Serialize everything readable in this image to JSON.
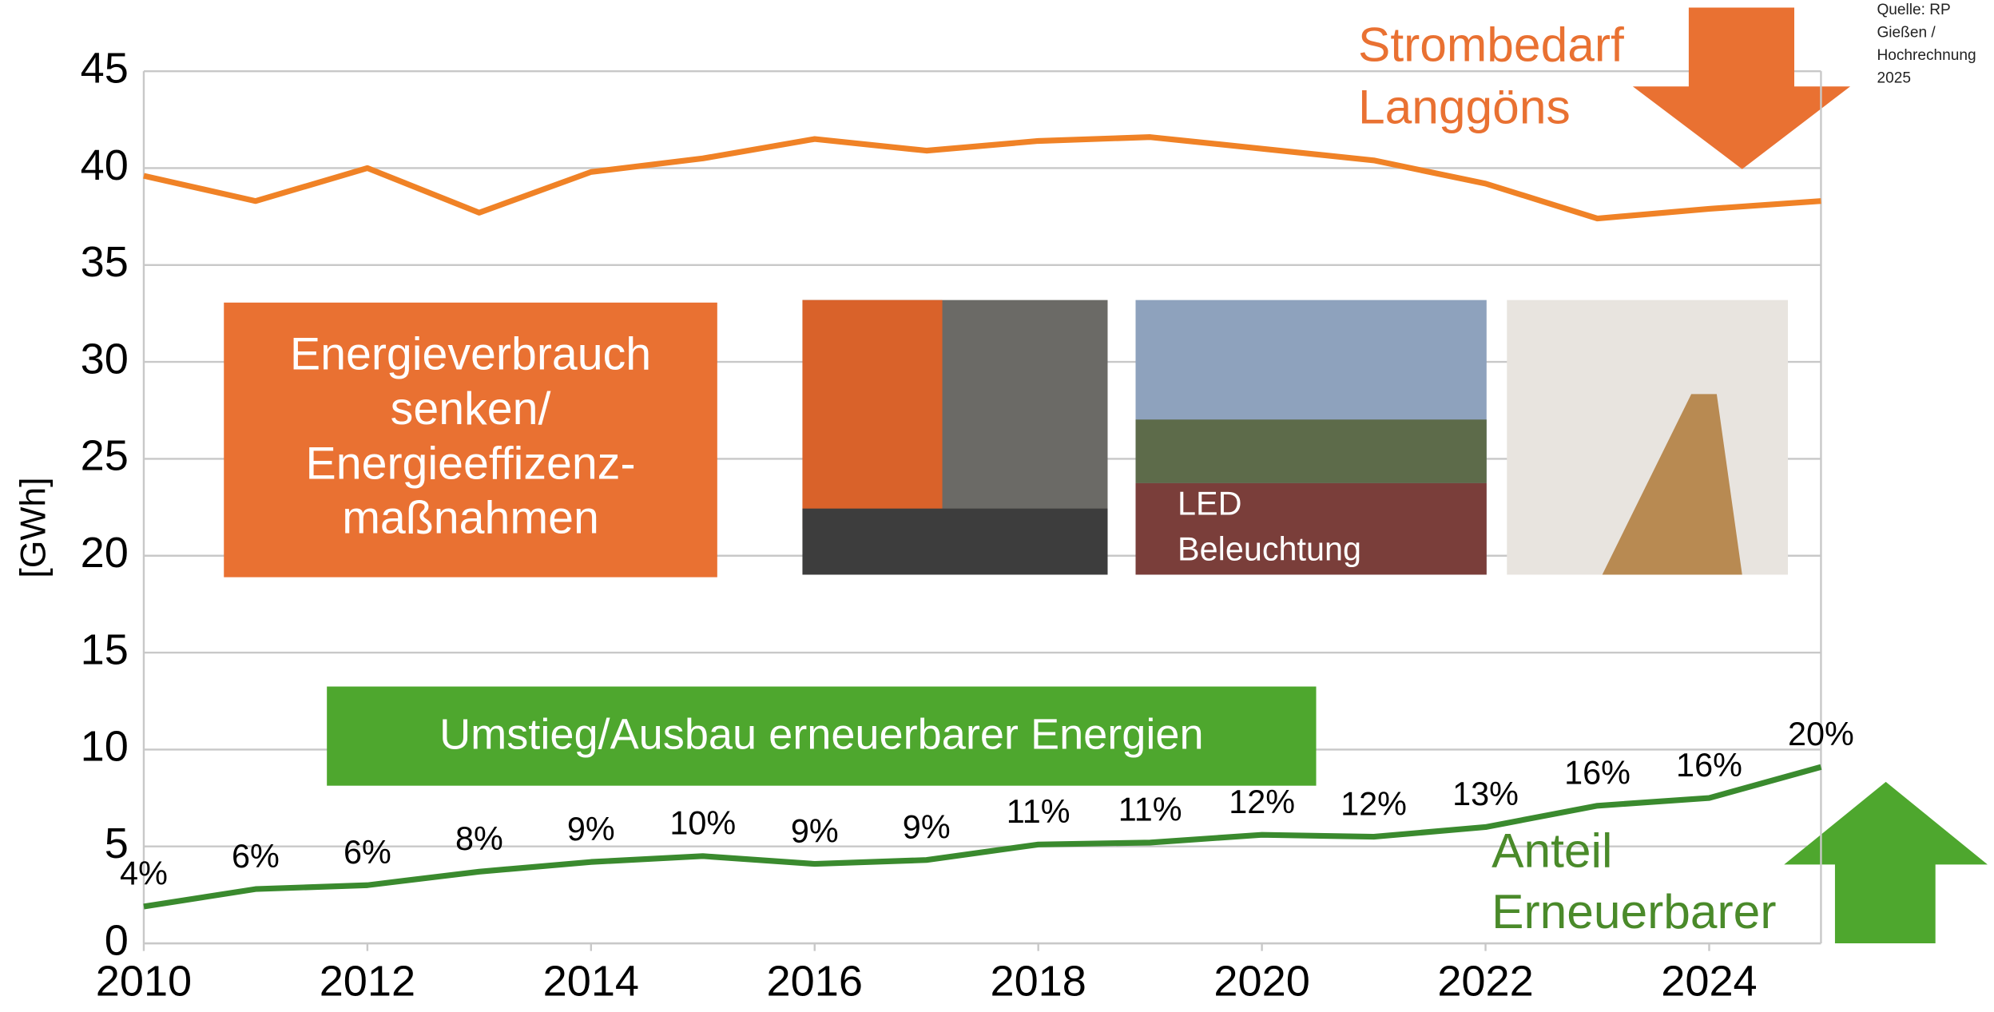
{
  "chart_data": {
    "type": "line",
    "y_label": "[GWh]",
    "x": [
      2010,
      2011,
      2012,
      2013,
      2014,
      2015,
      2016,
      2017,
      2018,
      2019,
      2020,
      2021,
      2022,
      2023,
      2024,
      2025
    ],
    "xlim": [
      2010,
      2025
    ],
    "xticks": [
      2010,
      2012,
      2014,
      2016,
      2018,
      2020,
      2022,
      2024
    ],
    "ylim": [
      0,
      45
    ],
    "yticks": [
      0,
      5,
      10,
      15,
      20,
      25,
      30,
      35,
      40,
      45
    ],
    "grid": true,
    "series": [
      {
        "color": "#f08226",
        "values": [
          39.6,
          38.3,
          40.0,
          37.7,
          39.8,
          40.5,
          41.5,
          40.9,
          41.4,
          41.6,
          41.0,
          40.4,
          39.2,
          37.4,
          37.9,
          38.3
        ]
      },
      {
        "color": "#3a8a2e",
        "values": [
          1.9,
          2.8,
          3.0,
          3.7,
          4.2,
          4.5,
          4.1,
          4.3,
          5.1,
          5.2,
          5.6,
          5.5,
          6.0,
          7.1,
          7.5,
          9.1
        ],
        "value_labels": [
          "4%",
          "6%",
          "6%",
          "8%",
          "9%",
          "10%",
          "9%",
          "9%",
          "11%",
          "11%",
          "12%",
          "12%",
          "13%",
          "16%",
          "16%",
          "20%"
        ]
      }
    ],
    "annotations": {
      "demand": [
        "Strombedarf",
        "Langgöns"
      ],
      "renewable": [
        "Anteil",
        "Erneuerbarer"
      ],
      "source": [
        "Quelle: RP",
        "Gießen /",
        "Hochrechnung",
        "2025"
      ]
    }
  },
  "panels": {
    "efficiency": [
      "Energieverbrauch",
      "senken/",
      "Energieeffizenz-",
      "maßnahmen"
    ],
    "renewables": "Umstieg/Ausbau erneuerbarer Energien",
    "photo_caption": [
      "LED",
      "Beleuchtung"
    ]
  }
}
